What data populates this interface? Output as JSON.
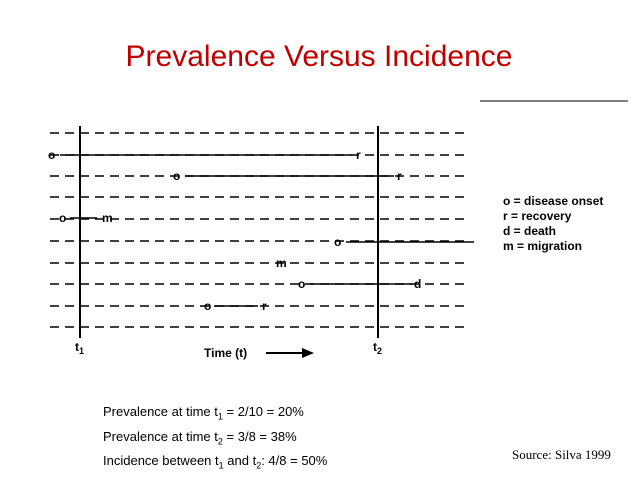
{
  "title": "Prevalence Versus Incidence",
  "diagram": {
    "rows": [
      {
        "onset": "o",
        "mid": "",
        "end": "r"
      },
      {
        "onset": "o",
        "mid": "",
        "end": "r"
      },
      {
        "onset": "o",
        "mid": "",
        "end": "m"
      },
      {
        "onset": "o",
        "mid": "",
        "end": ""
      },
      {
        "onset": "",
        "mid": "",
        "end": "m"
      },
      {
        "onset": "o",
        "mid": "",
        "end": "d"
      },
      {
        "onset": "o",
        "mid": "",
        "end": "r"
      }
    ],
    "t1_label": "t",
    "t1_sub": "1",
    "t2_label": "t",
    "t2_sub": "2",
    "time_label": "Time (t)"
  },
  "legend": [
    "o = disease onset",
    "r = recovery",
    "d = death",
    "m = migration"
  ],
  "stats": {
    "line1_pre": "Prevalence at time t",
    "line1_sub": "1",
    "line1_post": " = 2/10 = 20%",
    "line2_pre": "Prevalence at time t",
    "line2_sub": "2",
    "line2_post": " = 3/8 = 38%",
    "line3_pre": "Incidence between t",
    "line3_sub": "1",
    "line3_mid": " and t",
    "line3_sub2": "2",
    "line3_post": ": 4/8 = 50%"
  },
  "source": "Source: Silva 1999"
}
